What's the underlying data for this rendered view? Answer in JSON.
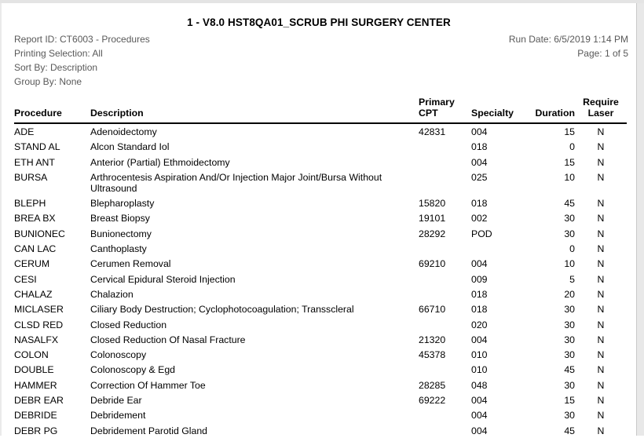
{
  "report": {
    "title": "1 - V8.0 HST8QA01_SCRUB PHI SURGERY CENTER",
    "meta_left": {
      "report_id": "Report ID: CT6003 - Procedures",
      "printing_selection": "Printing Selection: All",
      "sort_by": "Sort By: Description",
      "group_by": "Group By: None"
    },
    "meta_right": {
      "run_date": "Run Date: 6/5/2019 1:14 PM",
      "page": "Page: 1 of 5"
    }
  },
  "table": {
    "columns": [
      {
        "key": "procedure",
        "lines": [
          "Procedure"
        ]
      },
      {
        "key": "description",
        "lines": [
          "Description"
        ]
      },
      {
        "key": "primary_cpt",
        "lines": [
          "Primary",
          "CPT"
        ]
      },
      {
        "key": "specialty",
        "lines": [
          "Specialty"
        ]
      },
      {
        "key": "duration",
        "lines": [
          "Duration"
        ]
      },
      {
        "key": "require_laser",
        "lines": [
          "Require",
          "Laser"
        ]
      }
    ],
    "row_keys": [
      "procedure",
      "description",
      "primary_cpt",
      "specialty",
      "duration",
      "require_laser"
    ],
    "rows": [
      {
        "procedure": "ADE",
        "description": "Adenoidectomy",
        "primary_cpt": "42831",
        "specialty": "004",
        "duration": "15",
        "require_laser": "N"
      },
      {
        "procedure": "STAND AL",
        "description": "Alcon Standard Iol",
        "primary_cpt": "",
        "specialty": "018",
        "duration": "0",
        "require_laser": "N"
      },
      {
        "procedure": "ETH ANT",
        "description": "Anterior (Partial) Ethmoidectomy",
        "primary_cpt": "",
        "specialty": "004",
        "duration": "15",
        "require_laser": "N"
      },
      {
        "procedure": "BURSA",
        "description": "Arthrocentesis Aspiration And/Or Injection Major Joint/Bursa Without Ultrasound",
        "primary_cpt": "",
        "specialty": "025",
        "duration": "10",
        "require_laser": "N"
      },
      {
        "procedure": "BLEPH",
        "description": "Blepharoplasty",
        "primary_cpt": "15820",
        "specialty": "018",
        "duration": "45",
        "require_laser": "N"
      },
      {
        "procedure": "BREA BX",
        "description": "Breast Biopsy",
        "primary_cpt": "19101",
        "specialty": "002",
        "duration": "30",
        "require_laser": "N"
      },
      {
        "procedure": "BUNIONEC",
        "description": "Bunionectomy",
        "primary_cpt": "28292",
        "specialty": "POD",
        "duration": "30",
        "require_laser": "N"
      },
      {
        "procedure": "CAN LAC",
        "description": "Canthoplasty",
        "primary_cpt": "",
        "specialty": "",
        "duration": "0",
        "require_laser": "N"
      },
      {
        "procedure": "CERUM",
        "description": "Cerumen Removal",
        "primary_cpt": "69210",
        "specialty": "004",
        "duration": "10",
        "require_laser": "N"
      },
      {
        "procedure": "CESI",
        "description": "Cervical Epidural Steroid Injection",
        "primary_cpt": "",
        "specialty": "009",
        "duration": "5",
        "require_laser": "N"
      },
      {
        "procedure": "CHALAZ",
        "description": "Chalazion",
        "primary_cpt": "",
        "specialty": "018",
        "duration": "20",
        "require_laser": "N"
      },
      {
        "procedure": "MICLASER",
        "description": "Ciliary Body Destruction; Cyclophotocoagulation; Transscleral",
        "primary_cpt": "66710",
        "specialty": "018",
        "duration": "30",
        "require_laser": "N"
      },
      {
        "procedure": "CLSD RED",
        "description": "Closed Reduction",
        "primary_cpt": "",
        "specialty": "020",
        "duration": "30",
        "require_laser": "N"
      },
      {
        "procedure": "NASALFX",
        "description": "Closed Reduction Of Nasal Fracture",
        "primary_cpt": "21320",
        "specialty": "004",
        "duration": "30",
        "require_laser": "N"
      },
      {
        "procedure": "COLON",
        "description": "Colonoscopy",
        "primary_cpt": "45378",
        "specialty": "010",
        "duration": "30",
        "require_laser": "N"
      },
      {
        "procedure": "DOUBLE",
        "description": "Colonoscopy & Egd",
        "primary_cpt": "",
        "specialty": "010",
        "duration": "45",
        "require_laser": "N"
      },
      {
        "procedure": "HAMMER",
        "description": "Correction Of Hammer Toe",
        "primary_cpt": "28285",
        "specialty": "048",
        "duration": "30",
        "require_laser": "N"
      },
      {
        "procedure": "DEBR EAR",
        "description": "Debride Ear",
        "primary_cpt": "69222",
        "specialty": "004",
        "duration": "15",
        "require_laser": "N"
      },
      {
        "procedure": "DEBRIDE",
        "description": "Debridement",
        "primary_cpt": "",
        "specialty": "004",
        "duration": "30",
        "require_laser": "N"
      },
      {
        "procedure": "DEBR PG",
        "description": "Debridement Parotid Gland",
        "primary_cpt": "",
        "specialty": "004",
        "duration": "45",
        "require_laser": "N"
      }
    ]
  },
  "colors": {
    "meta_text": "#595959",
    "body_text": "#000000",
    "window_edge": "#e4e4e4",
    "header_rule": "#000000"
  }
}
